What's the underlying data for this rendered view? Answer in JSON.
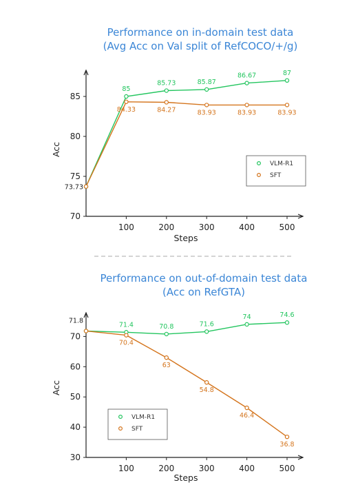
{
  "colors": {
    "title": "#3b86d6",
    "vlm": "#22c55e",
    "sft": "#d4741c",
    "axis": "#222222",
    "separator": "#aaaaaa"
  },
  "chart_data": [
    {
      "type": "line",
      "title": "Performance on in-domain test data",
      "subtitle": "(Avg Acc on Val split of RefCOCO/+/g)",
      "xlabel": "Steps",
      "ylabel": "Acc",
      "x": [
        0,
        100,
        200,
        300,
        400,
        500
      ],
      "x_tick_labels": [
        "100",
        "200",
        "300",
        "400",
        "500"
      ],
      "y_ticks": [
        "70",
        "75",
        "80",
        "85"
      ],
      "xlim": [
        0,
        530
      ],
      "ylim": [
        70,
        88.5
      ],
      "grid": false,
      "legend_position": "right",
      "series": [
        {
          "name": "VLM-R1",
          "color": "#22c55e",
          "values": [
            73.73,
            85,
            85.73,
            85.87,
            86.67,
            87
          ],
          "labels": [
            "",
            "85",
            "85.73",
            "85.87",
            "86.67",
            "87"
          ]
        },
        {
          "name": "SFT",
          "color": "#d4741c",
          "values": [
            73.73,
            84.33,
            84.27,
            83.93,
            83.93,
            83.93
          ],
          "labels": [
            "73.73",
            "84.33",
            "84.27",
            "83.93",
            "83.93",
            "83.93"
          ]
        }
      ]
    },
    {
      "type": "line",
      "title": "Performance on out-of-domain test data",
      "subtitle": "(Acc on RefGTA)",
      "xlabel": "Steps",
      "ylabel": "Acc",
      "x": [
        0,
        100,
        200,
        300,
        400,
        500
      ],
      "x_tick_labels": [
        "100",
        "200",
        "300",
        "400",
        "500"
      ],
      "y_ticks": [
        "30",
        "40",
        "50",
        "60",
        "70"
      ],
      "xlim": [
        0,
        530
      ],
      "ylim": [
        30,
        77
      ],
      "grid": false,
      "legend_position": "bottom-left",
      "series": [
        {
          "name": "VLM-R1",
          "color": "#22c55e",
          "values": [
            71.8,
            71.4,
            70.8,
            71.6,
            74,
            74.6
          ],
          "labels": [
            "71.8",
            "71.4",
            "70.8",
            "71.6",
            "74",
            "74.6"
          ]
        },
        {
          "name": "SFT",
          "color": "#d4741c",
          "values": [
            71.8,
            70.4,
            63,
            54.8,
            46.4,
            36.8
          ],
          "labels": [
            "",
            "70.4",
            "63",
            "54.8",
            "46.4",
            "36.8"
          ]
        }
      ]
    }
  ]
}
